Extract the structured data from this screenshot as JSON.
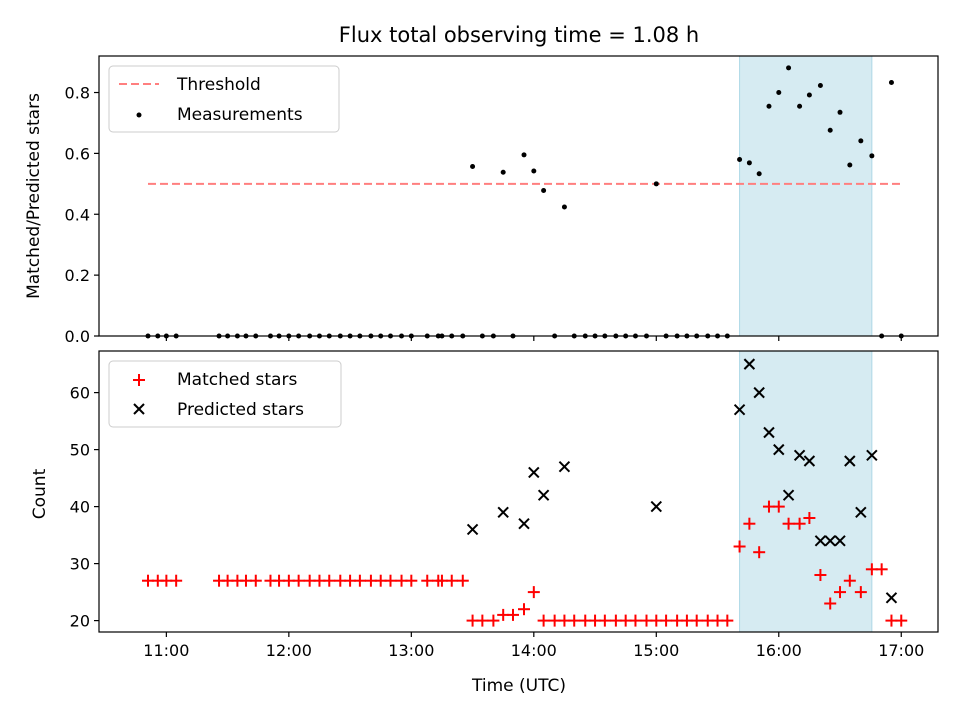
{
  "chart_data": [
    {
      "type": "scatter",
      "title": "Flux total observing time = 1.08 h",
      "xlabel": "",
      "ylabel": "Matched/Predicted stars",
      "xlim": [
        10.45,
        17.3
      ],
      "ylim": [
        0,
        0.92
      ],
      "xticks": [
        11,
        12,
        13,
        14,
        15,
        16,
        17
      ],
      "yticks": [
        0.0,
        0.2,
        0.4,
        0.6,
        0.8
      ],
      "ytick_labels": [
        "0.0",
        "0.2",
        "0.4",
        "0.6",
        "0.8"
      ],
      "shaded_region": [
        15.68,
        16.76
      ],
      "threshold": {
        "name": "Threshold",
        "value": 0.5,
        "x_range": [
          10.85,
          17.0
        ],
        "color": "#ff7f7f"
      },
      "series": [
        {
          "name": "Measurements",
          "color": "#000000",
          "x": [
            10.85,
            10.93,
            11.0,
            11.08,
            11.43,
            11.5,
            11.58,
            11.65,
            11.73,
            11.85,
            11.92,
            12.0,
            12.08,
            12.17,
            12.25,
            12.33,
            12.42,
            12.5,
            12.58,
            12.67,
            12.75,
            12.83,
            12.92,
            13.0,
            13.13,
            13.22,
            13.25,
            13.33,
            13.42,
            13.5,
            13.58,
            13.67,
            13.75,
            13.83,
            13.92,
            14.0,
            14.08,
            14.17,
            14.25,
            14.33,
            14.42,
            14.5,
            14.58,
            14.67,
            14.75,
            14.83,
            14.92,
            15.0,
            15.08,
            15.17,
            15.25,
            15.33,
            15.42,
            15.5,
            15.58,
            15.68,
            15.76,
            15.84,
            15.92,
            16.0,
            16.08,
            16.17,
            16.25,
            16.34,
            16.42,
            16.5,
            16.58,
            16.67,
            16.76,
            16.84,
            16.92,
            17.0
          ],
          "y": [
            0,
            0,
            0,
            0,
            0,
            0,
            0,
            0,
            0,
            0,
            0,
            0,
            0,
            0,
            0,
            0,
            0,
            0,
            0,
            0,
            0,
            0,
            0,
            0,
            0,
            0,
            0,
            0,
            0,
            0.557,
            0,
            0,
            0.538,
            0,
            0.595,
            0.542,
            0.478,
            0,
            0.424,
            0,
            0,
            0,
            0,
            0,
            0,
            0,
            0,
            0.5,
            0,
            0,
            0,
            0,
            0,
            0,
            0,
            0.58,
            0.569,
            0.533,
            0.755,
            0.8,
            0.881,
            0.755,
            0.792,
            0.823,
            0.676,
            0.735,
            0.562,
            0.641,
            0.592,
            0,
            0.833,
            0
          ]
        }
      ]
    },
    {
      "type": "scatter",
      "title": "",
      "xlabel": "Time (UTC)",
      "ylabel": "Count",
      "xlim": [
        10.45,
        17.3
      ],
      "ylim": [
        18,
        67.3
      ],
      "xticks": [
        11,
        12,
        13,
        14,
        15,
        16,
        17
      ],
      "xtick_labels": [
        "11:00",
        "12:00",
        "13:00",
        "14:00",
        "15:00",
        "16:00",
        "17:00"
      ],
      "yticks": [
        20,
        30,
        40,
        50,
        60
      ],
      "shaded_region": [
        15.68,
        16.76
      ],
      "series": [
        {
          "name": "Matched stars",
          "marker": "+",
          "color": "#ff0000",
          "x": [
            10.85,
            10.93,
            11.0,
            11.08,
            11.43,
            11.5,
            11.58,
            11.65,
            11.73,
            11.85,
            11.92,
            12.0,
            12.08,
            12.17,
            12.25,
            12.33,
            12.42,
            12.5,
            12.58,
            12.67,
            12.75,
            12.83,
            12.92,
            13.0,
            13.13,
            13.22,
            13.25,
            13.33,
            13.42,
            13.5,
            13.58,
            13.67,
            13.75,
            13.83,
            13.92,
            14.0,
            14.08,
            14.17,
            14.25,
            14.33,
            14.42,
            14.5,
            14.58,
            14.67,
            14.75,
            14.83,
            14.92,
            15.0,
            15.08,
            15.17,
            15.25,
            15.33,
            15.42,
            15.5,
            15.58,
            15.68,
            15.76,
            15.84,
            15.92,
            16.0,
            16.08,
            16.17,
            16.25,
            16.34,
            16.42,
            16.5,
            16.58,
            16.67,
            16.76,
            16.84,
            16.92,
            17.0
          ],
          "y": [
            27,
            27,
            27,
            27,
            27,
            27,
            27,
            27,
            27,
            27,
            27,
            27,
            27,
            27,
            27,
            27,
            27,
            27,
            27,
            27,
            27,
            27,
            27,
            27,
            27,
            27,
            27,
            27,
            27,
            20,
            20,
            20,
            21,
            21,
            22,
            25,
            20,
            20,
            20,
            20,
            20,
            20,
            20,
            20,
            20,
            20,
            20,
            20,
            20,
            20,
            20,
            20,
            20,
            20,
            20,
            33,
            37,
            32,
            40,
            40,
            37,
            37,
            38,
            28,
            23,
            25,
            27,
            25,
            29,
            29,
            20,
            20
          ]
        },
        {
          "name": "Predicted stars",
          "marker": "x",
          "color": "#000000",
          "x": [
            13.5,
            13.75,
            13.92,
            14.0,
            14.08,
            14.25,
            15.0,
            15.68,
            15.76,
            15.84,
            15.92,
            16.0,
            16.08,
            16.17,
            16.25,
            16.34,
            16.42,
            16.5,
            16.58,
            16.67,
            16.76,
            16.92
          ],
          "y": [
            36,
            39,
            37,
            46,
            42,
            47,
            40,
            57,
            65,
            60,
            53,
            50,
            42,
            49,
            48,
            34,
            34,
            34,
            48,
            39,
            49,
            24
          ]
        }
      ]
    }
  ]
}
